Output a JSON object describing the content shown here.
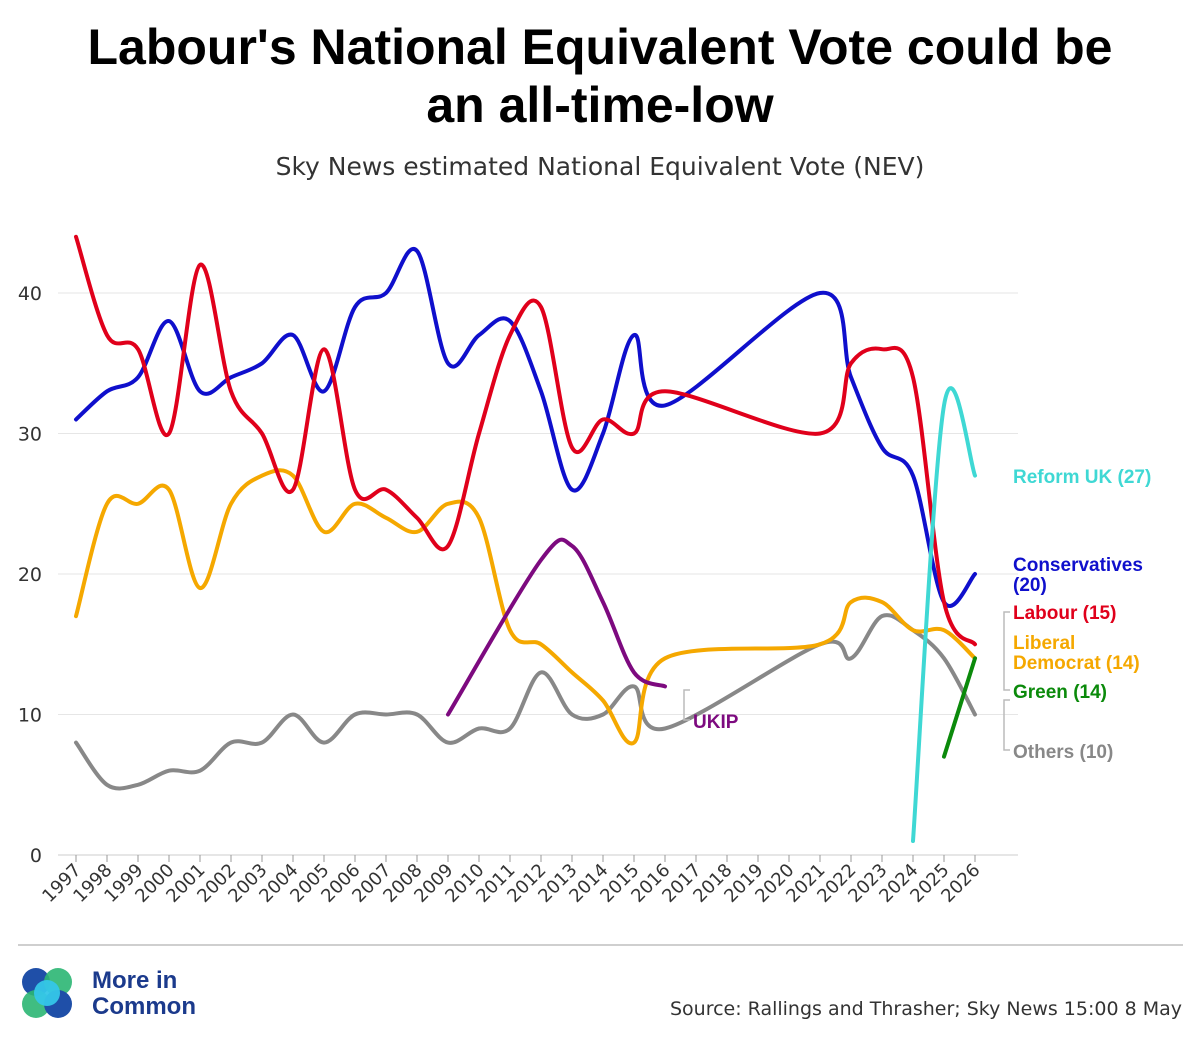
{
  "header": {
    "title_line1": "Labour's National Equivalent Vote could be",
    "title_line2": "an all-time-low",
    "subtitle": "Sky News estimated National Equivalent Vote (NEV)"
  },
  "footer": {
    "brand_line1": "More in",
    "brand_line2": "Common",
    "source": "Source: Rallings and Thrasher; Sky News 15:00 8 May"
  },
  "chart_data": {
    "type": "line",
    "title": "Labour's National Equivalent Vote could be an all-time-low",
    "subtitle": "Sky News estimated National Equivalent Vote (NEV)",
    "xlabel": "",
    "ylabel": "",
    "x": [
      "1997",
      "1998",
      "1999",
      "2000",
      "2001",
      "2002",
      "2003",
      "2004",
      "2005",
      "2006",
      "2007",
      "2008",
      "2009",
      "2010",
      "2011",
      "2012",
      "2013",
      "2014",
      "2015",
      "2016",
      "2017",
      "2018",
      "2019",
      "2020",
      "2021",
      "2022",
      "2023",
      "2024",
      "2025",
      "2026"
    ],
    "ylim": [
      0,
      45
    ],
    "yticks": [
      0,
      10,
      20,
      30,
      40
    ],
    "grid": true,
    "legend": "direct labels at right",
    "series": [
      {
        "name": "Conservatives",
        "label_lines": [
          "Conservatives",
          "(20)"
        ],
        "color": "#0f0fcc",
        "x": [
          "1997",
          "1998",
          "1999",
          "2000",
          "2001",
          "2002",
          "2003",
          "2004",
          "2005",
          "2006",
          "2007",
          "2008",
          "2009",
          "2010",
          "2011",
          "2012",
          "2013",
          "2014",
          "2015",
          "2016",
          "2021",
          "2022",
          "2023",
          "2024",
          "2025",
          "2026"
        ],
        "values": [
          31,
          33,
          34,
          38,
          33,
          34,
          35,
          37,
          33,
          39,
          40,
          43,
          35,
          37,
          38,
          33,
          26,
          30,
          37,
          32,
          40,
          34,
          29,
          27,
          18,
          20
        ]
      },
      {
        "name": "Labour",
        "label_lines": [
          "Labour (15)"
        ],
        "color": "#e0001b",
        "x": [
          "1997",
          "1998",
          "1999",
          "2000",
          "2001",
          "2002",
          "2003",
          "2004",
          "2005",
          "2006",
          "2007",
          "2008",
          "2009",
          "2010",
          "2011",
          "2012",
          "2013",
          "2014",
          "2015",
          "2016",
          "2021",
          "2022",
          "2023",
          "2024",
          "2025",
          "2026"
        ],
        "values": [
          44,
          37,
          36,
          30,
          42,
          33,
          30,
          26,
          36,
          26,
          26,
          24,
          22,
          30,
          37,
          39,
          29,
          31,
          30,
          33,
          30,
          35,
          36,
          34,
          18,
          15
        ]
      },
      {
        "name": "Liberal Democrat",
        "label_lines": [
          "Liberal",
          "Democrat (14)"
        ],
        "color": "#f5a800",
        "x": [
          "1997",
          "1998",
          "1999",
          "2000",
          "2001",
          "2002",
          "2003",
          "2004",
          "2005",
          "2006",
          "2007",
          "2008",
          "2009",
          "2010",
          "2011",
          "2012",
          "2013",
          "2014",
          "2015",
          "2016",
          "2021",
          "2022",
          "2023",
          "2024",
          "2025",
          "2026"
        ],
        "values": [
          17,
          25,
          25,
          26,
          19,
          25,
          27,
          27,
          23,
          25,
          24,
          23,
          25,
          24,
          16,
          15,
          13,
          11,
          8,
          14,
          15,
          18,
          18,
          16,
          16,
          14
        ]
      },
      {
        "name": "Reform UK",
        "label_lines": [
          "Reform UK (27)"
        ],
        "color": "#3fd8d4",
        "x": [
          "2024",
          "2025",
          "2026"
        ],
        "values": [
          1,
          32,
          27
        ]
      },
      {
        "name": "Green",
        "label_lines": [
          "Green (14)"
        ],
        "color": "#0b8a0b",
        "x": [
          "2025",
          "2026"
        ],
        "values": [
          7,
          14
        ]
      },
      {
        "name": "UKIP",
        "label_lines": [
          "UKIP"
        ],
        "color": "#7d0a7f",
        "x": [
          "2009",
          "2012",
          "2013",
          "2014",
          "2015",
          "2016"
        ],
        "values": [
          10,
          21,
          22,
          18,
          13,
          12
        ]
      },
      {
        "name": "Others",
        "label_lines": [
          "Others (10)"
        ],
        "color": "#888888",
        "x": [
          "1997",
          "1998",
          "1999",
          "2000",
          "2001",
          "2002",
          "2003",
          "2004",
          "2005",
          "2006",
          "2007",
          "2008",
          "2009",
          "2010",
          "2011",
          "2012",
          "2013",
          "2014",
          "2015",
          "2016",
          "2021",
          "2022",
          "2023",
          "2024",
          "2025",
          "2026"
        ],
        "values": [
          8,
          5,
          5,
          6,
          6,
          8,
          8,
          10,
          8,
          10,
          10,
          10,
          8,
          9,
          9,
          13,
          10,
          10,
          12,
          9,
          15,
          14,
          17,
          16,
          14,
          10
        ]
      }
    ]
  }
}
